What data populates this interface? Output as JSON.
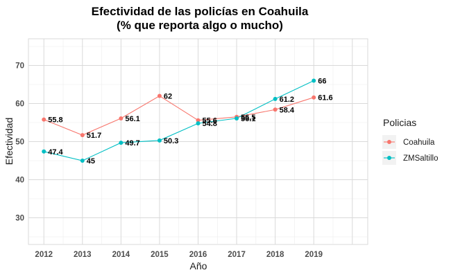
{
  "chart_data": {
    "type": "line",
    "title": "Efectividad de las policías en Coahuila",
    "subtitle": "(% que reporta algo o mucho)",
    "xlabel": "Año",
    "ylabel": "Efectividad",
    "x": [
      2012,
      2013,
      2014,
      2015,
      2016,
      2017,
      2018,
      2019
    ],
    "x_tick_labels": [
      "2012",
      "2013",
      "2014",
      "2015",
      "2016",
      "2017",
      "2018",
      "2019"
    ],
    "xlim": [
      2011.6,
      2020.4
    ],
    "ylim": [
      23,
      77
    ],
    "y_ticks": [
      30,
      40,
      50,
      60,
      70
    ],
    "y_tick_labels": [
      "30",
      "40",
      "50",
      "60",
      "70"
    ],
    "grid": true,
    "legend": {
      "title": "Policias",
      "position": "right"
    },
    "series": [
      {
        "name": "Coahuila",
        "color": "#F8766D",
        "values": [
          55.8,
          51.7,
          56.1,
          62,
          55.6,
          56.5,
          58.4,
          61.6
        ],
        "labels": [
          "55.8",
          "51.7",
          "56.1",
          "62",
          "55.6",
          "56.5",
          "58.4",
          "61.6"
        ]
      },
      {
        "name": "ZMSaltillo",
        "color": "#00BFC4",
        "values": [
          47.4,
          45,
          49.7,
          50.3,
          54.8,
          56.1,
          61.2,
          66
        ],
        "labels": [
          "47.4",
          "45",
          "49.7",
          "50.3",
          "54.8",
          "56.1",
          "61.2",
          "66"
        ]
      }
    ]
  }
}
